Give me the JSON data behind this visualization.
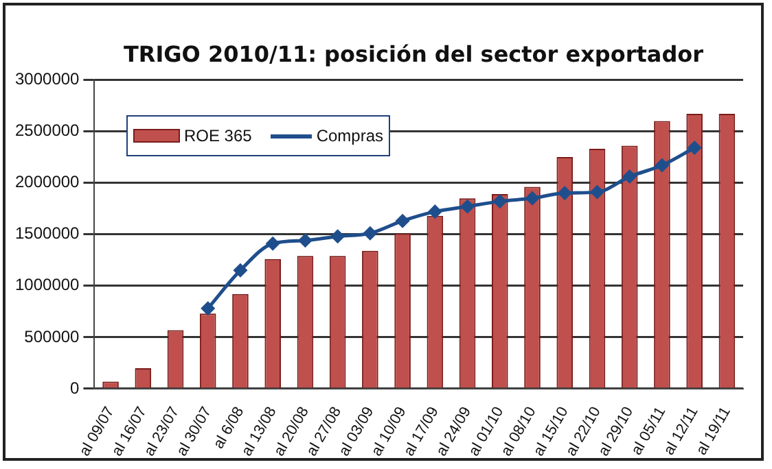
{
  "chart_data": {
    "type": "bar",
    "title": "TRIGO 2010/11: posición del sector exportador",
    "categories": [
      "al 09/07",
      "al 16/07",
      "al 23/07",
      "al 30/07",
      "al 6/08",
      "al 13/08",
      "al 20/08",
      "al 27/08",
      "al 03/09",
      "al 10/09",
      "al 17/09",
      "al 24/09",
      "al 01/10",
      "al 08/10",
      "al 15/10",
      "al 22/10",
      "al 29/10",
      "al 05/11",
      "al 12/11",
      "al 19/11"
    ],
    "series": [
      {
        "name": "ROE 365",
        "color": "#c0504d",
        "values": [
          70000,
          200000,
          570000,
          730000,
          920000,
          1260000,
          1290000,
          1290000,
          1340000,
          1510000,
          1680000,
          1850000,
          1890000,
          1960000,
          2250000,
          2330000,
          2360000,
          2600000,
          2670000,
          2670000
        ]
      },
      {
        "name": "Compras",
        "type": "line",
        "color": "#1f4e8c",
        "values": [
          null,
          null,
          null,
          780000,
          1150000,
          1410000,
          1440000,
          1480000,
          1510000,
          1630000,
          1720000,
          1770000,
          1820000,
          1850000,
          1900000,
          1910000,
          2060000,
          2170000,
          2340000,
          null
        ]
      }
    ],
    "ylim": [
      0,
      3000000
    ],
    "yticks": [
      0,
      500000,
      1000000,
      1500000,
      2000000,
      2500000,
      3000000
    ],
    "grid": "y",
    "legend": "top left",
    "marker": "diamond"
  }
}
